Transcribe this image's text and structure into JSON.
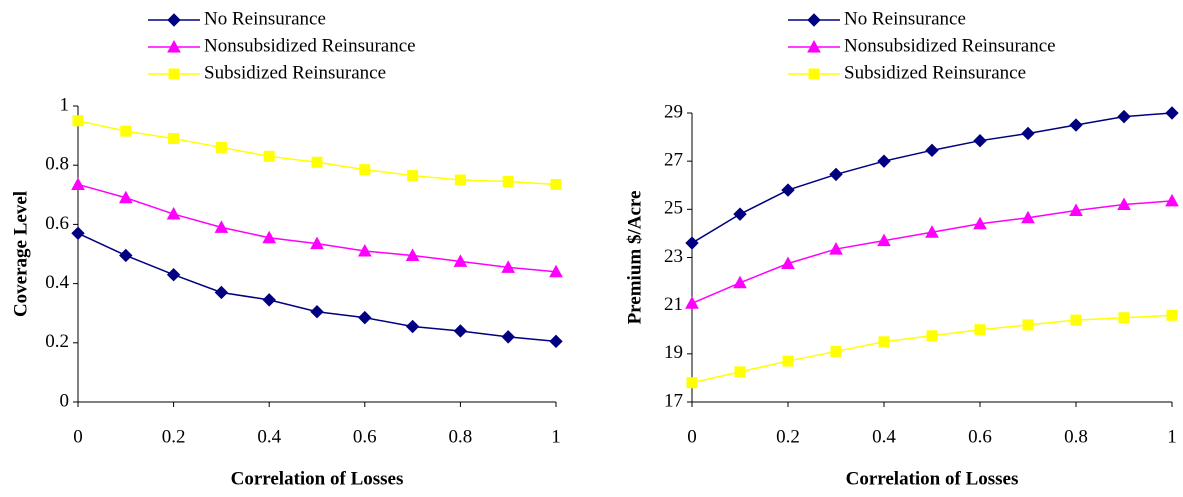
{
  "chart_data": [
    {
      "type": "line",
      "x_label": "Correlation of Losses",
      "y_label": "Coverage Level",
      "legend": "top",
      "x": [
        0,
        0.1,
        0.2,
        0.3,
        0.4,
        0.5,
        0.6,
        0.7,
        0.8,
        0.9,
        1
      ],
      "xlim": [
        0,
        1
      ],
      "xticks": [
        0,
        0.2,
        0.4,
        0.6,
        0.8,
        1
      ],
      "ylim": [
        0,
        1
      ],
      "yticks": [
        0,
        0.2,
        0.4,
        0.6,
        0.8,
        1
      ],
      "series": [
        {
          "name": "No Reinsurance",
          "color": "#000080",
          "marker": "diamond",
          "values": [
            0.57,
            0.495,
            0.43,
            0.37,
            0.345,
            0.305,
            0.285,
            0.255,
            0.24,
            0.22,
            0.205
          ]
        },
        {
          "name": "Nonsubsidized Reinsurance",
          "color": "#ff00ff",
          "marker": "triangle",
          "values": [
            0.735,
            0.69,
            0.635,
            0.59,
            0.555,
            0.535,
            0.51,
            0.495,
            0.475,
            0.455,
            0.44
          ]
        },
        {
          "name": "Subsidized Reinsurance",
          "color": "#ffff00",
          "marker": "square",
          "values": [
            0.95,
            0.915,
            0.89,
            0.86,
            0.83,
            0.81,
            0.785,
            0.765,
            0.75,
            0.745,
            0.735
          ]
        }
      ]
    },
    {
      "type": "line",
      "x_label": "Correlation of Losses",
      "y_label": "Premium $/Acre",
      "legend": "top",
      "x": [
        0,
        0.1,
        0.2,
        0.3,
        0.4,
        0.5,
        0.6,
        0.7,
        0.8,
        0.9,
        1
      ],
      "xlim": [
        0,
        1
      ],
      "xticks": [
        0,
        0.2,
        0.4,
        0.6,
        0.8,
        1
      ],
      "ylim": [
        17,
        29
      ],
      "yticks": [
        17,
        19,
        21,
        23,
        25,
        27,
        29
      ],
      "series": [
        {
          "name": "No Reinsurance",
          "color": "#000080",
          "marker": "diamond",
          "values": [
            23.6,
            24.8,
            25.8,
            26.45,
            27.0,
            27.45,
            27.85,
            28.15,
            28.5,
            28.85,
            29.0
          ]
        },
        {
          "name": "Nonsubsidized Reinsurance",
          "color": "#ff00ff",
          "marker": "triangle",
          "values": [
            21.1,
            21.95,
            22.75,
            23.35,
            23.7,
            24.05,
            24.4,
            24.65,
            24.95,
            25.2,
            25.35
          ]
        },
        {
          "name": "Subsidized Reinsurance",
          "color": "#ffff00",
          "marker": "square",
          "values": [
            17.8,
            18.25,
            18.7,
            19.1,
            19.5,
            19.75,
            20.0,
            20.2,
            20.4,
            20.5,
            20.6
          ]
        }
      ]
    }
  ]
}
